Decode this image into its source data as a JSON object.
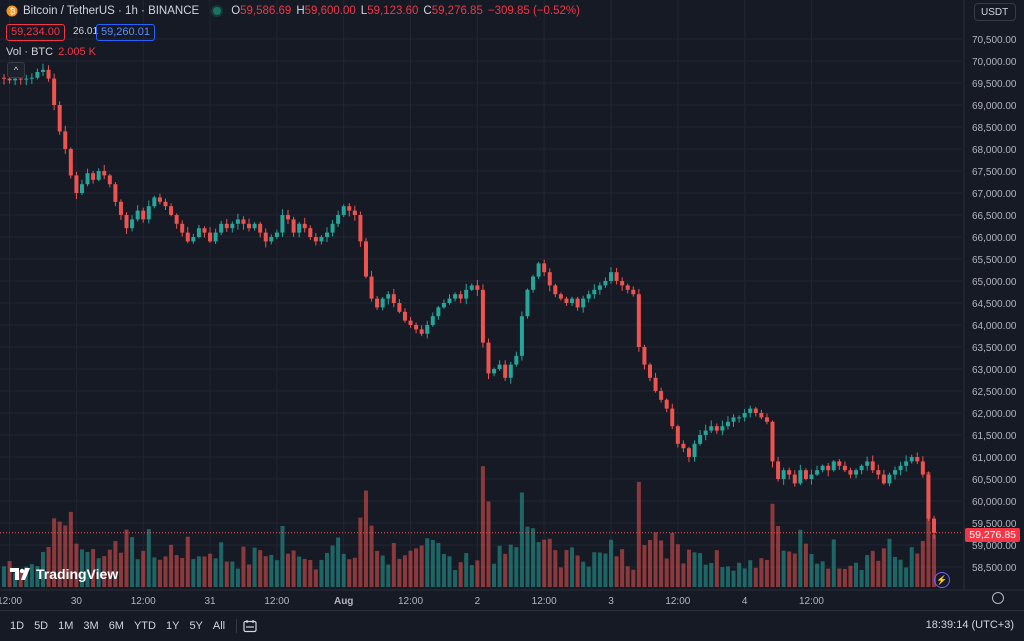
{
  "header": {
    "symbol": "Bitcoin / TetherUS · 1h · BINANCE",
    "o_label": "O",
    "o": "59,586.69",
    "h_label": "H",
    "h": "59,600.00",
    "l_label": "L",
    "l": "59,123.60",
    "c_label": "C",
    "c": "59,276.85",
    "change": "−309.85 (−0.52%)",
    "bid": "59,234.00",
    "spread": "26.01",
    "ask": "59,260.01",
    "vol_label": "Vol · BTC",
    "vol_value": "2.005 K"
  },
  "currency": "USDT",
  "current_price": "59,276.85",
  "logo_text": "TradingView",
  "timeframes": [
    "1D",
    "5D",
    "1M",
    "3M",
    "6M",
    "YTD",
    "1Y",
    "5Y",
    "All"
  ],
  "clock": "18:39:14 (UTC+3)",
  "colors": {
    "up": "#26a69a",
    "down": "#ef5350",
    "background": "#161a25",
    "grid": "#232632"
  },
  "icons": [
    "collapse-chevron-icon",
    "calendar-range-icon",
    "settings-icon",
    "lightning-icon",
    "bitcoin-icon"
  ],
  "chart_data": {
    "type": "candlestick",
    "ylim": [
      58000,
      70800
    ],
    "y_ticks": [
      "70,500.00",
      "70,000.00",
      "69,500.00",
      "69,000.00",
      "68,500.00",
      "68,000.00",
      "67,500.00",
      "67,000.00",
      "66,500.00",
      "66,000.00",
      "65,500.00",
      "65,000.00",
      "64,500.00",
      "64,000.00",
      "63,500.00",
      "63,000.00",
      "62,500.00",
      "62,000.00",
      "61,500.00",
      "61,000.00",
      "60,500.00",
      "60,000.00",
      "59,500.00",
      "59,000.00",
      "58,500.00"
    ],
    "x_ticks": [
      "12:00",
      "30",
      "12:00",
      "31",
      "12:00",
      "Aug",
      "12:00",
      "2",
      "12:00",
      "3",
      "12:00",
      "4",
      "12:00"
    ],
    "x_tick_index": [
      1,
      13,
      25,
      37,
      49,
      61,
      73,
      85,
      97,
      109,
      121,
      133,
      145
    ],
    "close": [
      69600,
      69560,
      69600,
      69590,
      69600,
      69620,
      69750,
      69800,
      69600,
      69000,
      68400,
      68000,
      67400,
      67000,
      67200,
      67450,
      67300,
      67500,
      67400,
      67200,
      66800,
      66500,
      66200,
      66400,
      66600,
      66400,
      66700,
      66900,
      66800,
      66700,
      66500,
      66300,
      66100,
      65900,
      66000,
      66200,
      66100,
      65900,
      66100,
      66300,
      66200,
      66300,
      66400,
      66300,
      66200,
      66300,
      66100,
      65900,
      66000,
      66100,
      66500,
      66400,
      66100,
      66300,
      66200,
      66000,
      65900,
      66000,
      66100,
      66300,
      66500,
      66700,
      66600,
      66500,
      65900,
      65100,
      64600,
      64400,
      64600,
      64700,
      64500,
      64300,
      64100,
      64000,
      63900,
      63800,
      64000,
      64200,
      64400,
      64500,
      64600,
      64700,
      64600,
      64800,
      64900,
      64800,
      63600,
      62900,
      63000,
      63100,
      62800,
      63100,
      63300,
      64200,
      64800,
      65100,
      65400,
      65200,
      64900,
      64700,
      64600,
      64500,
      64600,
      64400,
      64600,
      64700,
      64800,
      64900,
      65000,
      65200,
      65000,
      64900,
      64800,
      64700,
      63500,
      63100,
      62800,
      62500,
      62300,
      62100,
      61700,
      61300,
      61200,
      61000,
      61300,
      61500,
      61600,
      61700,
      61600,
      61700,
      61800,
      61900,
      61900,
      62000,
      62100,
      62000,
      61900,
      61800,
      60900,
      60500,
      60700,
      60600,
      60400,
      60700,
      60500,
      60600,
      60700,
      60800,
      60700,
      60900,
      60800,
      60700,
      60600,
      60700,
      60800,
      60900,
      60700,
      60600,
      60400,
      60600,
      60700,
      60800,
      60900,
      61000,
      60900,
      60600,
      59600,
      59277
    ]
  }
}
